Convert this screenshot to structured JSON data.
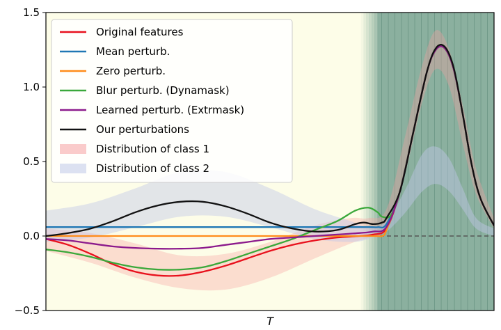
{
  "chart_data": {
    "type": "line",
    "title": "",
    "xlabel": "T",
    "ylabel": "",
    "xlim": [
      0,
      100
    ],
    "ylim": [
      -0.5,
      1.5
    ],
    "yticks": [
      -0.5,
      0.0,
      0.5,
      1.0,
      1.5
    ],
    "ytick_labels": [
      "−0.5",
      "0.0",
      "0.5",
      "1.0",
      "1.5"
    ],
    "grid": false,
    "legend_placement": "top-left",
    "highlight_region": {
      "x_start": 74,
      "x_end": 100,
      "color": "#6a9a8a"
    },
    "background_color": "#fdfde8",
    "reference_line": {
      "y": 0,
      "style": "dashed",
      "color": "#555555"
    },
    "bands": [
      {
        "name": "Distribution of class 1",
        "color": "#f5a0a0",
        "opacity": 0.35,
        "x": [
          0,
          10,
          20,
          30,
          40,
          50,
          60,
          68,
          72,
          76,
          80,
          84,
          87,
          90,
          93,
          96,
          100
        ],
        "lower": [
          -0.1,
          -0.18,
          -0.28,
          -0.35,
          -0.36,
          -0.28,
          -0.15,
          -0.05,
          -0.01,
          0.05,
          0.4,
          0.9,
          1.12,
          1.0,
          0.62,
          0.28,
          0.05
        ],
        "upper": [
          0.05,
          0.02,
          -0.05,
          -0.13,
          -0.12,
          -0.04,
          0.07,
          0.12,
          0.12,
          0.18,
          0.65,
          1.15,
          1.38,
          1.25,
          0.88,
          0.45,
          0.12
        ]
      },
      {
        "name": "Distribution of class 2",
        "color": "#c0c8e8",
        "opacity": 0.45,
        "x": [
          0,
          10,
          20,
          30,
          40,
          50,
          60,
          68,
          72,
          76,
          80,
          84,
          87,
          90,
          93,
          96,
          100
        ],
        "lower": [
          -0.04,
          -0.01,
          0.06,
          0.13,
          0.13,
          0.06,
          -0.02,
          -0.04,
          -0.02,
          0.03,
          0.15,
          0.3,
          0.35,
          0.3,
          0.18,
          0.05,
          0.0
        ],
        "upper": [
          0.17,
          0.22,
          0.32,
          0.43,
          0.43,
          0.32,
          0.18,
          0.1,
          0.06,
          0.1,
          0.3,
          0.55,
          0.6,
          0.52,
          0.32,
          0.12,
          0.05
        ]
      }
    ],
    "series": [
      {
        "name": "Original features",
        "color": "#e8101c",
        "x": [
          0,
          5,
          10,
          15,
          20,
          25,
          30,
          35,
          40,
          45,
          50,
          55,
          60,
          65,
          70,
          73,
          76,
          79,
          82,
          85,
          87,
          89,
          91,
          93,
          95,
          97,
          100
        ],
        "y": [
          -0.02,
          -0.06,
          -0.12,
          -0.19,
          -0.24,
          -0.265,
          -0.265,
          -0.24,
          -0.2,
          -0.15,
          -0.1,
          -0.06,
          -0.03,
          -0.01,
          0.0,
          0.01,
          0.05,
          0.3,
          0.7,
          1.1,
          1.25,
          1.26,
          1.12,
          0.82,
          0.48,
          0.25,
          0.07
        ]
      },
      {
        "name": "Mean perturb.",
        "color": "#1f77b4",
        "x": [
          0,
          20,
          40,
          60,
          72,
          74,
          76,
          79,
          82,
          85,
          87,
          89,
          91,
          93,
          95,
          97,
          100
        ],
        "y": [
          0.06,
          0.06,
          0.06,
          0.06,
          0.06,
          0.06,
          0.08,
          0.3,
          0.7,
          1.1,
          1.25,
          1.26,
          1.12,
          0.82,
          0.48,
          0.25,
          0.07
        ]
      },
      {
        "name": "Zero perturb.",
        "color": "#ff8c1a",
        "x": [
          0,
          20,
          40,
          60,
          73,
          75,
          76,
          79,
          82,
          85,
          87,
          89,
          91,
          93,
          95,
          97,
          100
        ],
        "y": [
          0.0,
          0.0,
          0.0,
          0.0,
          0.0,
          0.0,
          0.04,
          0.3,
          0.7,
          1.1,
          1.25,
          1.26,
          1.12,
          0.82,
          0.48,
          0.25,
          0.07
        ]
      },
      {
        "name": "Blur perturb. (Dynamask)",
        "color": "#3aa83a",
        "x": [
          0,
          5,
          10,
          15,
          20,
          25,
          30,
          35,
          40,
          45,
          50,
          55,
          60,
          65,
          69,
          72,
          74,
          75,
          77,
          79,
          82,
          85,
          87,
          89,
          91,
          93,
          95,
          97,
          100
        ],
        "y": [
          -0.09,
          -0.11,
          -0.14,
          -0.18,
          -0.21,
          -0.225,
          -0.225,
          -0.21,
          -0.17,
          -0.12,
          -0.07,
          -0.02,
          0.04,
          0.1,
          0.17,
          0.19,
          0.16,
          0.13,
          0.14,
          0.3,
          0.7,
          1.1,
          1.25,
          1.26,
          1.12,
          0.82,
          0.48,
          0.25,
          0.07
        ]
      },
      {
        "name": "Learned perturb. (Extrmask)",
        "color": "#8c1a8c",
        "x": [
          0,
          5,
          10,
          15,
          20,
          25,
          30,
          35,
          40,
          45,
          50,
          55,
          60,
          65,
          70,
          73,
          76,
          79,
          82,
          85,
          87,
          89,
          91,
          93,
          95,
          97,
          100
        ],
        "y": [
          -0.02,
          -0.03,
          -0.05,
          -0.07,
          -0.08,
          -0.085,
          -0.085,
          -0.08,
          -0.06,
          -0.04,
          -0.02,
          -0.01,
          0.0,
          0.01,
          0.02,
          0.03,
          0.06,
          0.3,
          0.7,
          1.1,
          1.25,
          1.26,
          1.12,
          0.82,
          0.48,
          0.25,
          0.07
        ]
      },
      {
        "name": "Our perturbations",
        "color": "#111111",
        "x": [
          0,
          5,
          10,
          15,
          20,
          25,
          30,
          35,
          40,
          45,
          50,
          55,
          60,
          65,
          69,
          71,
          73,
          75,
          76,
          79,
          82,
          85,
          87,
          89,
          91,
          93,
          95,
          97,
          100
        ],
        "y": [
          0.0,
          0.02,
          0.05,
          0.1,
          0.16,
          0.205,
          0.23,
          0.23,
          0.2,
          0.15,
          0.09,
          0.05,
          0.03,
          0.04,
          0.08,
          0.09,
          0.08,
          0.09,
          0.12,
          0.3,
          0.7,
          1.1,
          1.26,
          1.27,
          1.13,
          0.82,
          0.48,
          0.25,
          0.07
        ]
      }
    ],
    "legend": [
      {
        "label": "Original features",
        "kind": "line",
        "color": "#e8101c"
      },
      {
        "label": "Mean perturb.",
        "kind": "line",
        "color": "#1f77b4"
      },
      {
        "label": "Zero perturb.",
        "kind": "line",
        "color": "#ff8c1a"
      },
      {
        "label": "Blur perturb. (Dynamask)",
        "kind": "line",
        "color": "#3aa83a"
      },
      {
        "label": "Learned perturb. (Extrmask)",
        "kind": "line",
        "color": "#8c1a8c"
      },
      {
        "label": "Our perturbations",
        "kind": "line",
        "color": "#111111"
      },
      {
        "label": "Distribution of class 1",
        "kind": "patch",
        "color": "#f5a0a0"
      },
      {
        "label": "Distribution of class 2",
        "kind": "patch",
        "color": "#c0c8e8"
      }
    ]
  }
}
